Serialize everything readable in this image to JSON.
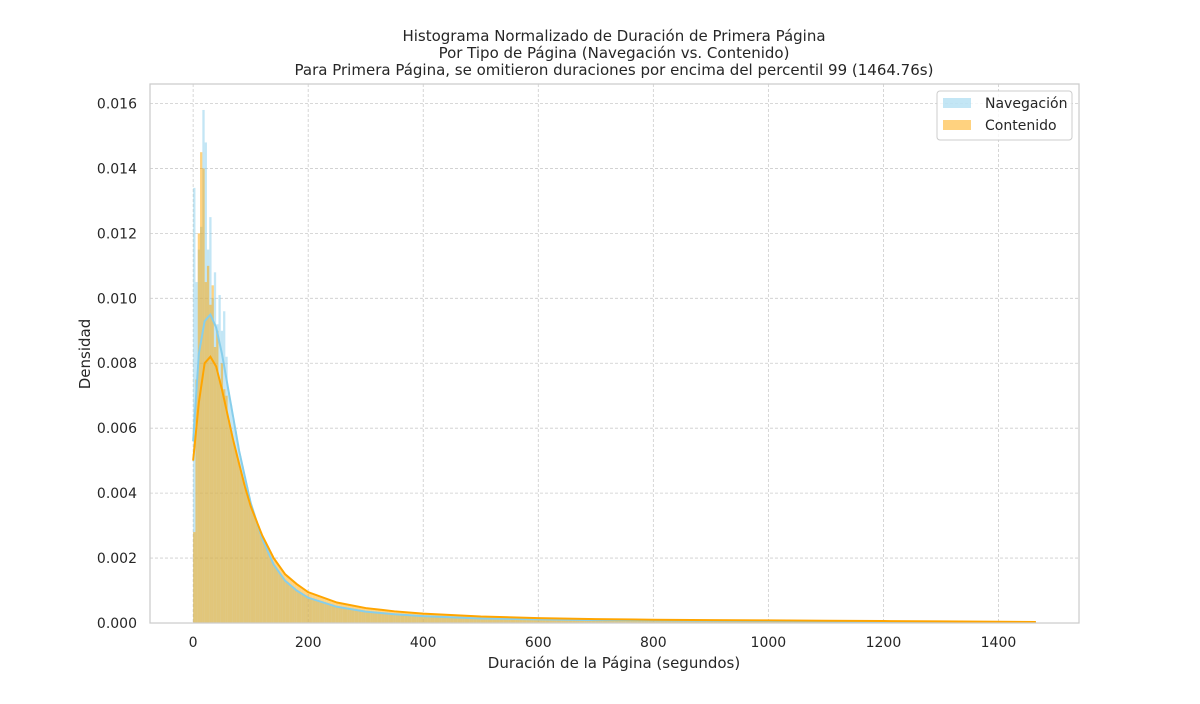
{
  "chart_data": {
    "type": "histogram",
    "title": "Histograma Normalizado de Duración de Primera Página",
    "subtitle_lines": [
      "Por Tipo de Página (Navegación vs. Contenido)",
      "Para Primera Página, se omitieron duraciones por encima del percentil 99 (1464.76s)"
    ],
    "xlabel": "Duración de la Página (segundos)",
    "ylabel": "Densidad",
    "xlim": [
      -75,
      1540
    ],
    "ylim": [
      0,
      0.0166
    ],
    "x_ticks": [
      0,
      200,
      400,
      600,
      800,
      1000,
      1200,
      1400
    ],
    "y_ticks": [
      0.0,
      0.002,
      0.004,
      0.006,
      0.008,
      0.01,
      0.012,
      0.014,
      0.016
    ],
    "y_tick_labels": [
      "0.000",
      "0.002",
      "0.004",
      "0.006",
      "0.008",
      "0.010",
      "0.012",
      "0.014",
      "0.016"
    ],
    "grid": true,
    "legend_position": "top-right",
    "bin_width": 4,
    "x_max": 1464.76,
    "series": [
      {
        "name": "Navegación",
        "color": "#87CEEB",
        "bar_opacity": 0.5,
        "peak_spikes": [
          [
            0,
            0.0134
          ],
          [
            4,
            0.0105
          ],
          [
            8,
            0.0115
          ],
          [
            12,
            0.0122
          ],
          [
            16,
            0.0158
          ],
          [
            20,
            0.0148
          ],
          [
            24,
            0.0115
          ],
          [
            28,
            0.0125
          ],
          [
            32,
            0.01
          ],
          [
            36,
            0.0108
          ],
          [
            40,
            0.0092
          ],
          [
            44,
            0.0101
          ],
          [
            48,
            0.009
          ],
          [
            52,
            0.0096
          ],
          [
            56,
            0.0082
          ]
        ],
        "kde": [
          [
            0,
            0.0056
          ],
          [
            10,
            0.0083
          ],
          [
            20,
            0.0093
          ],
          [
            30,
            0.0095
          ],
          [
            40,
            0.0091
          ],
          [
            50,
            0.0083
          ],
          [
            60,
            0.0073
          ],
          [
            70,
            0.0063
          ],
          [
            80,
            0.0053
          ],
          [
            90,
            0.0045
          ],
          [
            100,
            0.0037
          ],
          [
            120,
            0.0026
          ],
          [
            140,
            0.0018
          ],
          [
            160,
            0.0013
          ],
          [
            180,
            0.001
          ],
          [
            200,
            0.00078
          ],
          [
            250,
            0.0005
          ],
          [
            300,
            0.00035
          ],
          [
            350,
            0.00027
          ],
          [
            400,
            0.00021
          ],
          [
            500,
            0.00014
          ],
          [
            600,
            0.00011
          ],
          [
            700,
            9e-05
          ],
          [
            800,
            8e-05
          ],
          [
            900,
            7e-05
          ],
          [
            1000,
            6e-05
          ],
          [
            1100,
            5e-05
          ],
          [
            1200,
            4e-05
          ],
          [
            1300,
            3e-05
          ],
          [
            1400,
            2.5e-05
          ],
          [
            1465,
            2e-05
          ]
        ]
      },
      {
        "name": "Contenido",
        "color": "#FFA500",
        "bar_opacity": 0.5,
        "peak_spikes": [
          [
            0,
            0.0028
          ],
          [
            4,
            0.0075
          ],
          [
            8,
            0.012
          ],
          [
            12,
            0.0145
          ],
          [
            16,
            0.014
          ],
          [
            20,
            0.0105
          ],
          [
            24,
            0.011
          ],
          [
            28,
            0.0098
          ],
          [
            32,
            0.0104
          ],
          [
            36,
            0.0085
          ],
          [
            40,
            0.009
          ],
          [
            44,
            0.0075
          ],
          [
            48,
            0.008
          ],
          [
            52,
            0.0072
          ],
          [
            56,
            0.007
          ]
        ],
        "kde": [
          [
            0,
            0.005
          ],
          [
            10,
            0.0068
          ],
          [
            20,
            0.008
          ],
          [
            30,
            0.0082
          ],
          [
            40,
            0.0079
          ],
          [
            50,
            0.0072
          ],
          [
            60,
            0.0064
          ],
          [
            70,
            0.0056
          ],
          [
            80,
            0.0049
          ],
          [
            90,
            0.0042
          ],
          [
            100,
            0.0036
          ],
          [
            120,
            0.0027
          ],
          [
            140,
            0.002
          ],
          [
            160,
            0.0015
          ],
          [
            180,
            0.0012
          ],
          [
            200,
            0.00095
          ],
          [
            250,
            0.00063
          ],
          [
            300,
            0.00046
          ],
          [
            350,
            0.00036
          ],
          [
            400,
            0.00029
          ],
          [
            500,
            0.0002
          ],
          [
            600,
            0.00015
          ],
          [
            700,
            0.00012
          ],
          [
            800,
            0.0001
          ],
          [
            900,
            9e-05
          ],
          [
            1000,
            8e-05
          ],
          [
            1100,
            7e-05
          ],
          [
            1200,
            6e-05
          ],
          [
            1300,
            5e-05
          ],
          [
            1400,
            4e-05
          ],
          [
            1465,
            3e-05
          ]
        ]
      }
    ]
  }
}
